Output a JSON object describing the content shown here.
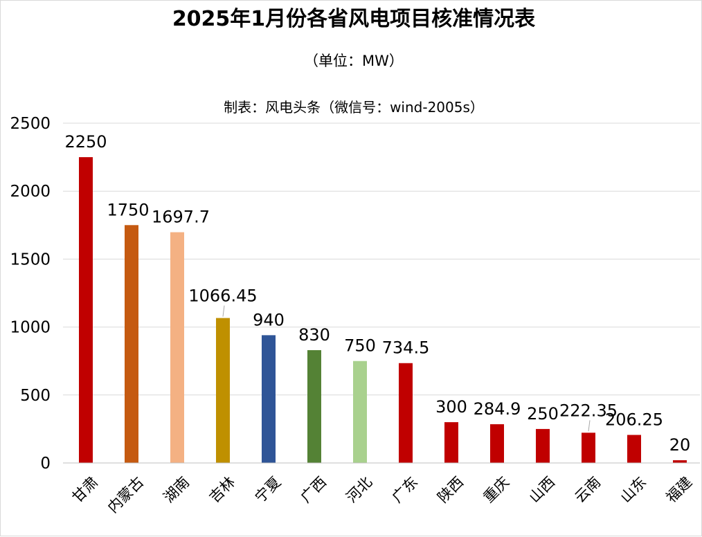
{
  "chart_data": {
    "type": "bar",
    "title": "2025年1月份各省风电项目核准情况表",
    "subtitle": "（单位：MW）",
    "annotation": "制表：风电头条（微信号：wind-2005s）",
    "categories": [
      "甘肃",
      "内蒙古",
      "湖南",
      "吉林",
      "宁夏",
      "广西",
      "河北",
      "广东",
      "陕西",
      "重庆",
      "山西",
      "云南",
      "山东",
      "福建"
    ],
    "values": [
      2250,
      1750,
      1697.7,
      1066.45,
      940,
      830,
      750,
      734.5,
      300,
      284.9,
      250,
      222.35,
      206.25,
      20
    ],
    "data_labels": [
      "2250",
      "1750",
      "1697.7",
      "1066.45",
      "940",
      "830",
      "750",
      "734.5",
      "300",
      "284.9",
      "250",
      "222.35",
      "206.25",
      "20"
    ],
    "colors": [
      "#c00000",
      "#c55a11",
      "#f4b183",
      "#bf9000",
      "#2f5597",
      "#548235",
      "#a9d18e",
      "#c00000",
      "#c00000",
      "#c00000",
      "#c00000",
      "#c00000",
      "#c00000",
      "#c00000"
    ],
    "ylim": [
      0,
      2500
    ],
    "yticks": [
      0,
      500,
      1000,
      1500,
      2000,
      2500
    ],
    "ytick_labels": [
      "0",
      "500",
      "1000",
      "1500",
      "2000",
      "2500"
    ],
    "grid": true,
    "legend": "none",
    "xlabel": "",
    "ylabel": ""
  }
}
